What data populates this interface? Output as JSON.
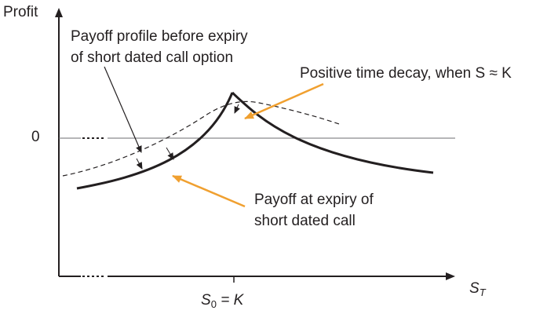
{
  "axes": {
    "y_label": "Profit",
    "x_label_main": "S",
    "x_label_sub": "T",
    "zero_label": "0",
    "strike_label_main": "S",
    "strike_label_sub": "0",
    "strike_label_rest": " = K"
  },
  "annotations": {
    "before_expiry_line1": "Payoff profile before expiry",
    "before_expiry_line2": "of short dated call option",
    "time_decay": "Positive time decay, when S ≈ K",
    "at_expiry_line1": "Payoff at expiry of",
    "at_expiry_line2": "short dated call"
  },
  "colors": {
    "ink": "#231f20",
    "accent_arrow": "#f0a030",
    "zero_line": "#6d6e71"
  }
}
